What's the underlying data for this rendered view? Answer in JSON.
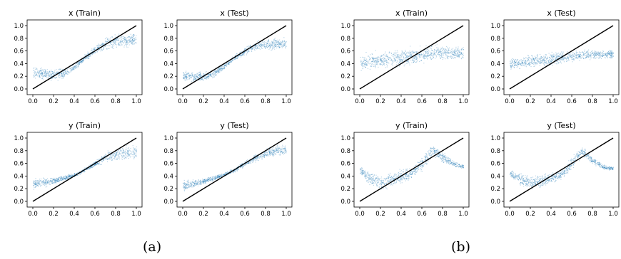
{
  "figure": {
    "captions": [
      "(a)",
      "(b)"
    ]
  },
  "chart_data": [
    {
      "type": "scatter",
      "group": "(a)",
      "title": "x (Train)",
      "xlim": [
        0,
        1
      ],
      "ylim": [
        0,
        1
      ],
      "xticks": [
        "0.0",
        "0.2",
        "0.4",
        "0.6",
        "0.8",
        "1.0"
      ],
      "yticks": [
        "0.0",
        "0.2",
        "0.4",
        "0.6",
        "0.8",
        "1.0"
      ],
      "series": [
        {
          "x": [
            0.0,
            0.1,
            0.2,
            0.3,
            0.4,
            0.5,
            0.6,
            0.7,
            0.8,
            0.9,
            1.0
          ],
          "y": [
            0.27,
            0.24,
            0.22,
            0.25,
            0.35,
            0.5,
            0.62,
            0.72,
            0.76,
            0.77,
            0.78
          ],
          "spread": [
            0.13,
            0.12,
            0.12,
            0.1,
            0.07,
            0.06,
            0.08,
            0.12,
            0.14,
            0.14,
            0.14
          ]
        }
      ],
      "reference_line": [
        [
          0,
          0
        ],
        [
          1,
          1
        ]
      ],
      "color": "#1f77b4",
      "grid": false
    },
    {
      "type": "scatter",
      "group": "(a)",
      "title": "x (Test)",
      "xlim": [
        0,
        1
      ],
      "ylim": [
        0,
        1
      ],
      "xticks": [
        "0.0",
        "0.2",
        "0.4",
        "0.6",
        "0.8",
        "1.0"
      ],
      "yticks": [
        "0.0",
        "0.2",
        "0.4",
        "0.6",
        "0.8",
        "1.0"
      ],
      "series": [
        {
          "x": [
            0.0,
            0.1,
            0.2,
            0.3,
            0.4,
            0.5,
            0.6,
            0.7,
            0.8,
            0.9,
            1.0
          ],
          "y": [
            0.22,
            0.2,
            0.2,
            0.25,
            0.36,
            0.5,
            0.6,
            0.68,
            0.72,
            0.72,
            0.72
          ],
          "spread": [
            0.12,
            0.1,
            0.1,
            0.08,
            0.06,
            0.05,
            0.07,
            0.1,
            0.12,
            0.12,
            0.12
          ]
        }
      ],
      "reference_line": [
        [
          0,
          0
        ],
        [
          1,
          1
        ]
      ],
      "color": "#1f77b4",
      "grid": false
    },
    {
      "type": "scatter",
      "group": "(a)",
      "title": "y (Train)",
      "xlim": [
        0,
        1
      ],
      "ylim": [
        0,
        1
      ],
      "xticks": [
        "0.0",
        "0.2",
        "0.4",
        "0.6",
        "0.8",
        "1.0"
      ],
      "yticks": [
        "0.0",
        "0.2",
        "0.4",
        "0.6",
        "0.8",
        "1.0"
      ],
      "series": [
        {
          "x": [
            0.0,
            0.1,
            0.2,
            0.3,
            0.4,
            0.5,
            0.6,
            0.7,
            0.8,
            0.9,
            1.0
          ],
          "y": [
            0.27,
            0.3,
            0.33,
            0.37,
            0.42,
            0.5,
            0.6,
            0.7,
            0.75,
            0.77,
            0.78
          ],
          "spread": [
            0.12,
            0.1,
            0.07,
            0.05,
            0.04,
            0.04,
            0.06,
            0.1,
            0.13,
            0.14,
            0.14
          ]
        }
      ],
      "reference_line": [
        [
          0,
          0
        ],
        [
          1,
          1
        ]
      ],
      "color": "#1f77b4",
      "grid": false
    },
    {
      "type": "scatter",
      "group": "(a)",
      "title": "y (Test)",
      "xlim": [
        0,
        1
      ],
      "ylim": [
        0,
        1
      ],
      "xticks": [
        "0.0",
        "0.2",
        "0.4",
        "0.6",
        "0.8",
        "1.0"
      ],
      "yticks": [
        "0.0",
        "0.2",
        "0.4",
        "0.6",
        "0.8",
        "1.0"
      ],
      "series": [
        {
          "x": [
            0.0,
            0.1,
            0.2,
            0.3,
            0.4,
            0.5,
            0.6,
            0.7,
            0.8,
            0.9,
            1.0
          ],
          "y": [
            0.25,
            0.28,
            0.32,
            0.37,
            0.43,
            0.5,
            0.6,
            0.7,
            0.76,
            0.8,
            0.82
          ],
          "spread": [
            0.1,
            0.08,
            0.06,
            0.05,
            0.04,
            0.04,
            0.05,
            0.08,
            0.1,
            0.1,
            0.1
          ]
        }
      ],
      "reference_line": [
        [
          0,
          0
        ],
        [
          1,
          1
        ]
      ],
      "color": "#1f77b4",
      "grid": false
    },
    {
      "type": "scatter",
      "group": "(b)",
      "title": "x (Train)",
      "xlim": [
        0,
        1
      ],
      "ylim": [
        0,
        1
      ],
      "xticks": [
        "0.0",
        "0.2",
        "0.4",
        "0.6",
        "0.8",
        "1.0"
      ],
      "yticks": [
        "0.0",
        "0.2",
        "0.4",
        "0.6",
        "0.8",
        "1.0"
      ],
      "series": [
        {
          "x": [
            0.0,
            0.1,
            0.2,
            0.3,
            0.4,
            0.5,
            0.6,
            0.7,
            0.8,
            0.9,
            1.0
          ],
          "y": [
            0.42,
            0.44,
            0.46,
            0.48,
            0.5,
            0.52,
            0.55,
            0.57,
            0.58,
            0.58,
            0.58
          ],
          "spread": [
            0.17,
            0.17,
            0.17,
            0.17,
            0.17,
            0.17,
            0.17,
            0.16,
            0.15,
            0.14,
            0.14
          ]
        }
      ],
      "reference_line": [
        [
          0,
          0
        ],
        [
          1,
          1
        ]
      ],
      "color": "#1f77b4",
      "grid": false
    },
    {
      "type": "scatter",
      "group": "(b)",
      "title": "x (Test)",
      "xlim": [
        0,
        1
      ],
      "ylim": [
        0,
        1
      ],
      "xticks": [
        "0.0",
        "0.2",
        "0.4",
        "0.6",
        "0.8",
        "1.0"
      ],
      "yticks": [
        "0.0",
        "0.2",
        "0.4",
        "0.6",
        "0.8",
        "1.0"
      ],
      "series": [
        {
          "x": [
            0.0,
            0.1,
            0.2,
            0.3,
            0.4,
            0.5,
            0.6,
            0.7,
            0.8,
            0.9,
            1.0
          ],
          "y": [
            0.4,
            0.42,
            0.44,
            0.46,
            0.48,
            0.5,
            0.52,
            0.54,
            0.55,
            0.55,
            0.55
          ],
          "spread": [
            0.12,
            0.12,
            0.12,
            0.12,
            0.12,
            0.12,
            0.11,
            0.1,
            0.1,
            0.09,
            0.09
          ]
        }
      ],
      "reference_line": [
        [
          0,
          0
        ],
        [
          1,
          1
        ]
      ],
      "color": "#1f77b4",
      "grid": false
    },
    {
      "type": "scatter",
      "group": "(b)",
      "title": "y (Train)",
      "xlim": [
        0,
        1
      ],
      "ylim": [
        0,
        1
      ],
      "xticks": [
        "0.0",
        "0.2",
        "0.4",
        "0.6",
        "0.8",
        "1.0"
      ],
      "yticks": [
        "0.0",
        "0.2",
        "0.4",
        "0.6",
        "0.8",
        "1.0"
      ],
      "series": [
        {
          "x": [
            0.0,
            0.1,
            0.2,
            0.3,
            0.4,
            0.5,
            0.6,
            0.7,
            0.8,
            0.9,
            1.0
          ],
          "y": [
            0.5,
            0.35,
            0.3,
            0.35,
            0.4,
            0.45,
            0.6,
            0.82,
            0.7,
            0.6,
            0.55
          ],
          "spread": [
            0.08,
            0.15,
            0.17,
            0.15,
            0.13,
            0.12,
            0.15,
            0.12,
            0.1,
            0.06,
            0.04
          ]
        }
      ],
      "reference_line": [
        [
          0,
          0
        ],
        [
          1,
          1
        ]
      ],
      "color": "#1f77b4",
      "grid": false
    },
    {
      "type": "scatter",
      "group": "(b)",
      "title": "y (Test)",
      "xlim": [
        0,
        1
      ],
      "ylim": [
        0,
        1
      ],
      "xticks": [
        "0.0",
        "0.2",
        "0.4",
        "0.6",
        "0.8",
        "1.0"
      ],
      "yticks": [
        "0.0",
        "0.2",
        "0.4",
        "0.6",
        "0.8",
        "1.0"
      ],
      "series": [
        {
          "x": [
            0.0,
            0.1,
            0.2,
            0.3,
            0.4,
            0.5,
            0.6,
            0.7,
            0.8,
            0.9,
            1.0
          ],
          "y": [
            0.45,
            0.35,
            0.3,
            0.32,
            0.38,
            0.42,
            0.62,
            0.8,
            0.65,
            0.55,
            0.52
          ],
          "spread": [
            0.06,
            0.12,
            0.13,
            0.12,
            0.1,
            0.1,
            0.12,
            0.1,
            0.08,
            0.05,
            0.04
          ]
        }
      ],
      "reference_line": [
        [
          0,
          0
        ],
        [
          1,
          1
        ]
      ],
      "color": "#1f77b4",
      "grid": false
    }
  ]
}
